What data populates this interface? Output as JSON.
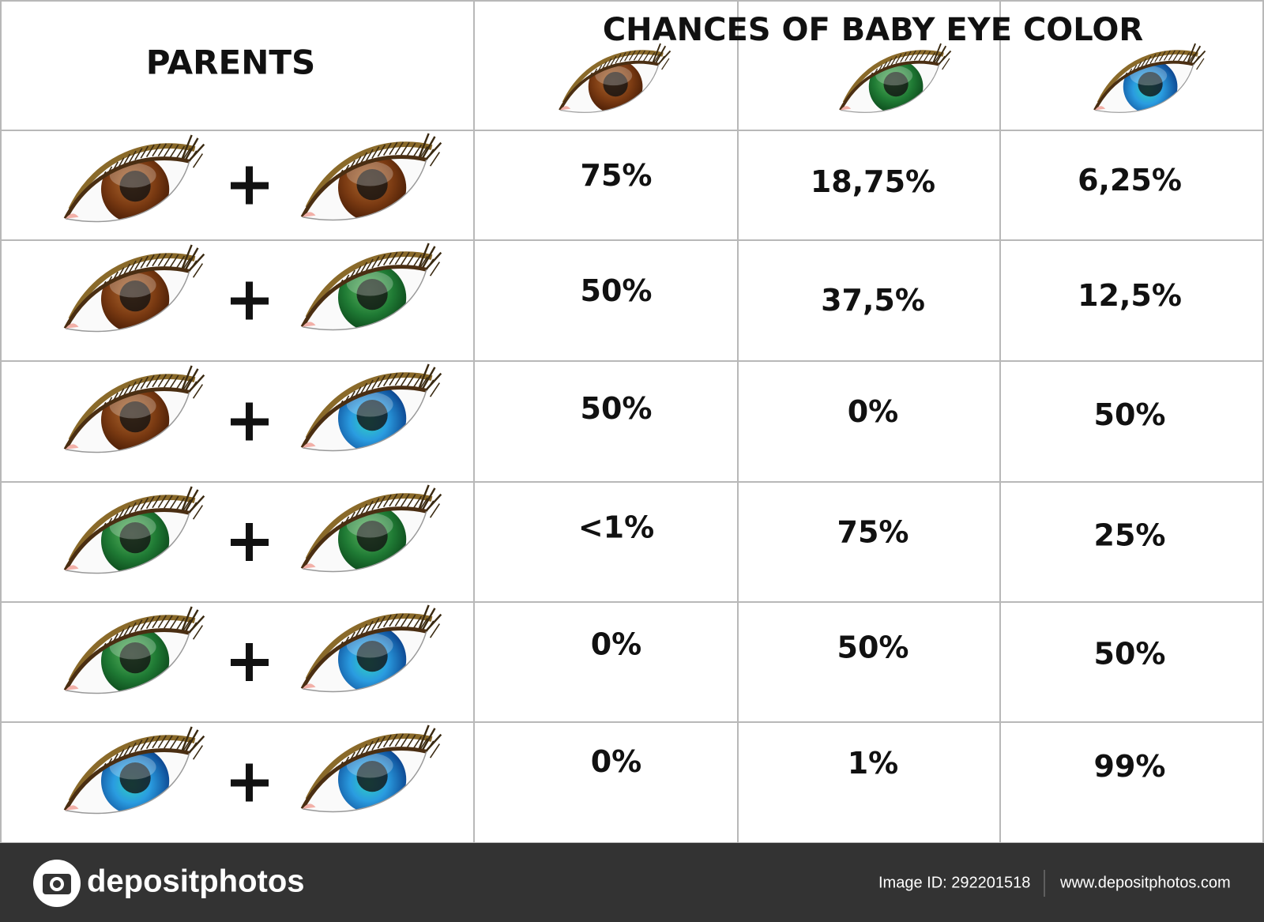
{
  "header": {
    "parents": "PARENTS",
    "title": "CHANCES OF BABY EYE COLOR"
  },
  "table": {
    "rows": [
      [
        "75%",
        "18,75%",
        "6,25%"
      ],
      [
        "50%",
        "37,5%",
        "12,5%"
      ],
      [
        "50%",
        "0%",
        "50%"
      ],
      [
        "<1%",
        "75%",
        "25%"
      ],
      [
        "0%",
        "50%",
        "50%"
      ],
      [
        "0%",
        "1%",
        "99%"
      ]
    ]
  },
  "footer": {
    "brand": "depositphotos",
    "image_id": "Image ID: 292201518",
    "website": "www.depositphotos.com"
  }
}
